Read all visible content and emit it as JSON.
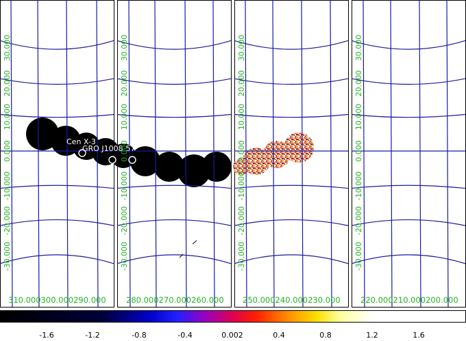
{
  "sky_map": {
    "panels": [
      {
        "lon_labels": [
          "310.000",
          "300.000",
          "290.000"
        ],
        "lat_labels": [
          "30.000",
          "20.000",
          "10.000",
          "0.000",
          "-10.000",
          "-20.000",
          "-30.000"
        ]
      },
      {
        "lon_labels": [
          "280.000",
          "270.000",
          "260.000"
        ],
        "lat_labels": [
          "30.000",
          "20.000",
          "10.000",
          "0.000",
          "-10.000",
          "-20.000",
          "-30.000"
        ]
      },
      {
        "lon_labels": [
          "250.000",
          "240.000",
          "230.000"
        ],
        "lat_labels": [
          "30.000",
          "20.000",
          "10.000",
          "0.000",
          "-10.000",
          "-20.000",
          "-30.000"
        ]
      },
      {
        "lon_labels": [
          "220.000",
          "210.000",
          "200.000"
        ],
        "lat_labels": [
          "30.000",
          "20.000",
          "10.000",
          "0.000",
          "-10.000",
          "-20.000",
          "-30.000"
        ]
      }
    ],
    "sources": [
      {
        "name": "Cen X-3"
      },
      {
        "name": "GRO J1008-57"
      }
    ]
  },
  "colorbar": {
    "ticks": [
      "-1.6",
      "-1.2",
      "-0.8",
      "-0.4",
      "0.002",
      "0.4",
      "0.8",
      "1.2",
      "1.6"
    ]
  },
  "colors": {
    "grid": "#1a1aa0",
    "labels": "#22b222",
    "background": "#ffffff",
    "exposure_dark": "#000000"
  }
}
